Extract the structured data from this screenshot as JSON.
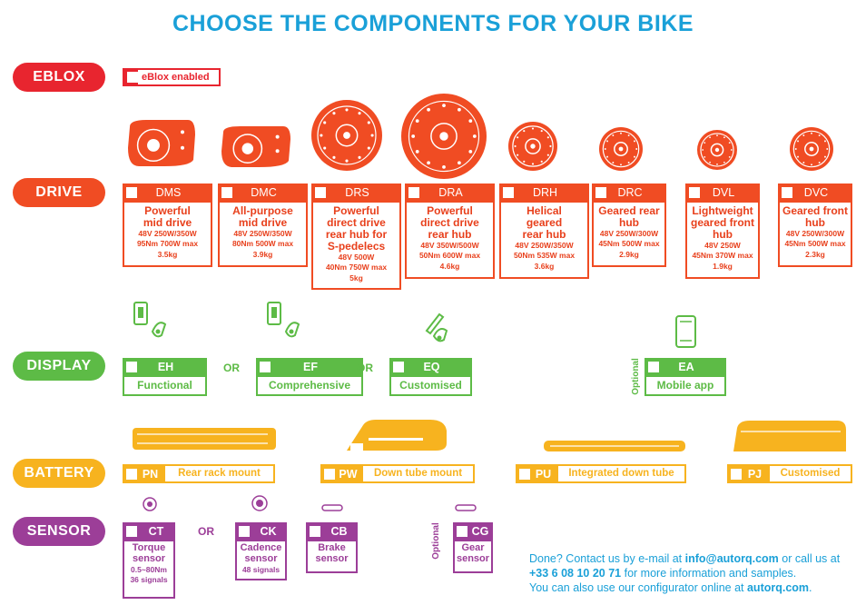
{
  "title": "CHOOSE THE COMPONENTS FOR YOUR BIKE",
  "colors": {
    "blue": "#1aa0d8",
    "red": "#e8252f",
    "orange": "#f04c23",
    "green": "#5dbb46",
    "yellow": "#f7b31f",
    "purple": "#9c3e98"
  },
  "eblox": {
    "label": "EBLOX",
    "option": "eBlox enabled"
  },
  "drive": {
    "label": "DRIVE",
    "items": [
      {
        "code": "DMS",
        "lines": [
          "Powerful",
          "mid drive"
        ],
        "specs": [
          "48V 250W/350W",
          "95Nm 700W max",
          "3.5kg"
        ],
        "icon": "mid-motor-icon"
      },
      {
        "code": "DMC",
        "lines": [
          "All-purpose",
          "mid drive"
        ],
        "specs": [
          "48V 250W/350W",
          "80Nm 500W max",
          "3.9kg"
        ],
        "icon": "mid-motor-icon"
      },
      {
        "code": "DRS",
        "lines": [
          "Powerful",
          "direct drive",
          "rear hub for",
          "S-pedelecs"
        ],
        "specs": [
          "48V 500W",
          "40Nm 750W max",
          "5kg"
        ],
        "icon": "hub-motor-icon"
      },
      {
        "code": "DRA",
        "lines": [
          "Powerful",
          "direct drive",
          "rear hub"
        ],
        "specs": [
          "48V 350W/500W",
          "50Nm 600W max",
          "4.6kg"
        ],
        "icon": "hub-motor-icon"
      },
      {
        "code": "DRH",
        "lines": [
          "Helical",
          "geared",
          "rear hub"
        ],
        "specs": [
          "48V 250W/350W",
          "50Nm 535W max",
          "3.6kg"
        ],
        "icon": "hub-motor-icon"
      },
      {
        "code": "DRC",
        "lines": [
          "Geared rear",
          "hub"
        ],
        "specs": [
          "48V 250W/300W",
          "45Nm 500W max",
          "2.9kg"
        ],
        "icon": "hub-motor-icon"
      },
      {
        "code": "DVL",
        "lines": [
          "Lightweight",
          "geared front",
          "hub"
        ],
        "specs": [
          "48V 250W",
          "45Nm 370W max",
          "1.9kg"
        ],
        "icon": "hub-motor-icon"
      },
      {
        "code": "DVC",
        "lines": [
          "Geared front",
          "hub"
        ],
        "specs": [
          "48V 250W/300W",
          "45Nm 500W max",
          "2.3kg"
        ],
        "icon": "hub-motor-icon"
      }
    ]
  },
  "display": {
    "label": "DISPLAY",
    "or": "OR",
    "optional": "Optional",
    "items": [
      {
        "code": "EH",
        "desc": "Functional",
        "icon": "display-icon"
      },
      {
        "code": "EF",
        "desc": "Comprehensive",
        "icon": "display-icon"
      },
      {
        "code": "EQ",
        "desc": "Customised",
        "icon": "display-icon"
      },
      {
        "code": "EA",
        "desc": "Mobile app",
        "icon": "smartphone-icon"
      }
    ]
  },
  "battery": {
    "label": "BATTERY",
    "items": [
      {
        "code": "PN",
        "desc": "Rear rack mount",
        "icon": "battery-icon"
      },
      {
        "code": "PW",
        "desc": "Down tube mount",
        "icon": "battery-icon"
      },
      {
        "code": "PU",
        "desc": "Integrated down tube",
        "icon": "battery-icon"
      },
      {
        "code": "PJ",
        "desc": "Customised",
        "icon": "battery-icon"
      }
    ]
  },
  "sensor": {
    "label": "SENSOR",
    "or": "OR",
    "optional": "Optional",
    "items": [
      {
        "code": "CT",
        "lines": [
          "Torque",
          "sensor"
        ],
        "specs": [
          "0.5~80Nm",
          "36 signals"
        ],
        "icon": "sensor-icon"
      },
      {
        "code": "CK",
        "lines": [
          "Cadence",
          "sensor"
        ],
        "specs": [
          "48 signals"
        ],
        "icon": "sensor-icon"
      },
      {
        "code": "CB",
        "lines": [
          "Brake",
          "sensor"
        ],
        "specs": [],
        "icon": "sensor-icon"
      },
      {
        "code": "CG",
        "lines": [
          "Gear",
          "sensor"
        ],
        "specs": [],
        "icon": "sensor-icon"
      }
    ]
  },
  "contact": {
    "l1a": "Done? Contact us by e-mail at ",
    "email": "info@autorq.com",
    "l1b": " or call us at",
    "phone": "+33 6 08 10 20 71",
    "l2": " for more information and samples.",
    "l3": "You can also use our configurator online at ",
    "site": "autorq.com",
    "l3b": "."
  }
}
